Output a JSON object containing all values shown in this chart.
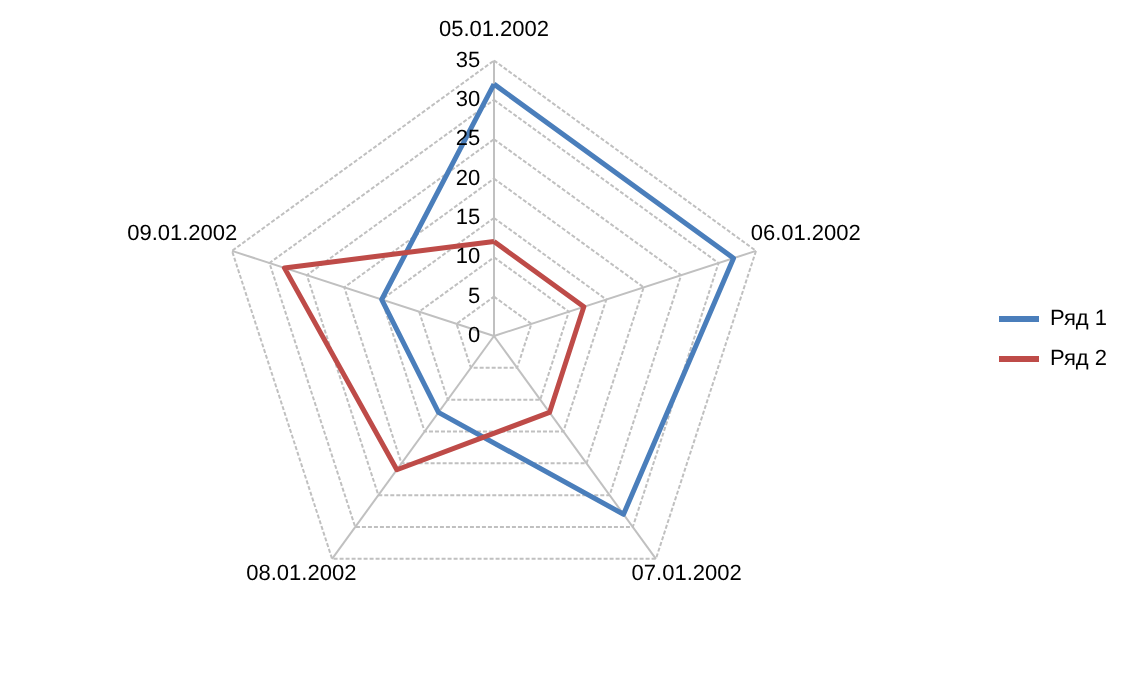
{
  "chart_data": {
    "type": "radar",
    "categories": [
      "05.01.2002",
      "06.01.2002",
      "07.01.2002",
      "08.01.2002",
      "09.01.2002"
    ],
    "series": [
      {
        "name": "Ряд 1",
        "color": "#4a7ebb",
        "values": [
          32,
          32,
          28,
          12,
          15
        ]
      },
      {
        "name": "Ряд 2",
        "color": "#be4b48",
        "values": [
          12,
          12,
          12,
          21,
          28
        ]
      }
    ],
    "ylim": [
      0,
      35
    ],
    "yticks": [
      0,
      5,
      10,
      15,
      20,
      25,
      30,
      35
    ],
    "grid": true,
    "legend": "right"
  }
}
